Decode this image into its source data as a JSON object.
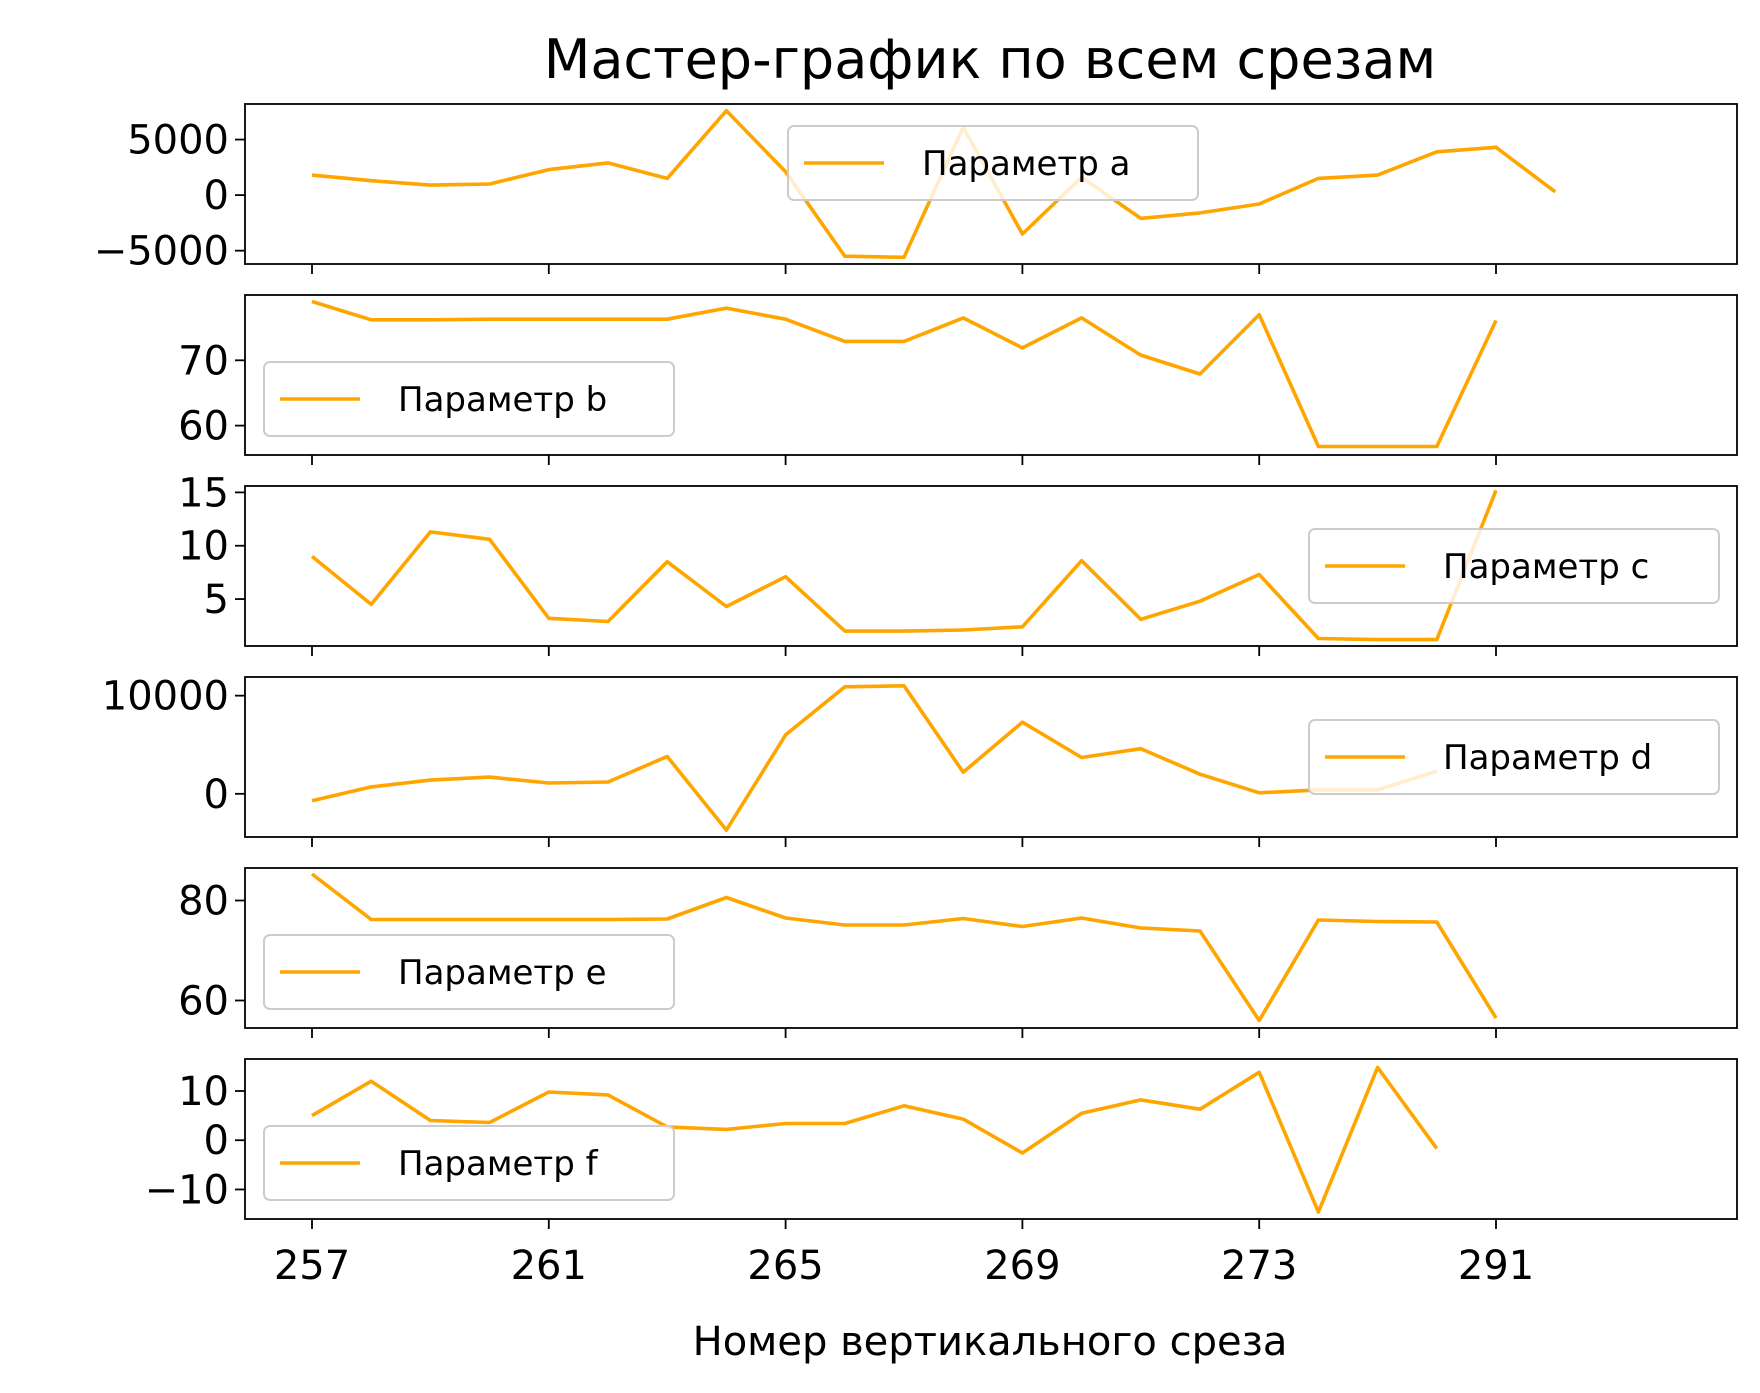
{
  "chart_data": {
    "type": "line",
    "title": "Мастер-график по всем срезам",
    "xlabel": "Номер вертикального среза",
    "x_tick_labels": [
      "257",
      "261",
      "265",
      "269",
      "273",
      "291"
    ],
    "color": "#ffa500",
    "panels": [
      {
        "name": "Параметр a",
        "ylim": [
          -6200,
          8200
        ],
        "yticks": [
          -5000,
          0,
          5000
        ],
        "ytick_labels": [
          "−5000",
          "0",
          "5000"
        ],
        "legend_loc": "upper-center",
        "values": [
          1800,
          1300,
          900,
          1000,
          2300,
          2900,
          1500,
          7600,
          2100,
          -5500,
          -5600,
          6100,
          -3500,
          1600,
          -2100,
          -1600,
          -800,
          1500,
          1800,
          3900,
          4300,
          300
        ]
      },
      {
        "name": "Параметр b",
        "ylim": [
          55.5,
          80
        ],
        "yticks": [
          60,
          70
        ],
        "ytick_labels": [
          "60",
          "70"
        ],
        "legend_loc": "lower-left",
        "values": [
          79,
          76.2,
          76.2,
          76.3,
          76.3,
          76.3,
          76.3,
          78,
          76.3,
          72.9,
          72.9,
          76.5,
          71.9,
          76.5,
          70.8,
          67.9,
          77,
          56.8,
          56.8,
          56.8,
          76.1
        ]
      },
      {
        "name": "Параметр c",
        "ylim": [
          0.6,
          15.6
        ],
        "yticks": [
          5,
          10,
          15
        ],
        "ytick_labels": [
          "5",
          "10",
          "15"
        ],
        "legend_loc": "center-right",
        "values": [
          9,
          4.5,
          11.3,
          10.6,
          3.2,
          2.9,
          8.5,
          4.3,
          7.1,
          2,
          2,
          2.1,
          2.4,
          8.6,
          3.1,
          4.8,
          7.3,
          1.3,
          1.2,
          1.2,
          15.2
        ]
      },
      {
        "name": "Параметр d",
        "ylim": [
          -4400,
          11900
        ],
        "yticks": [
          0,
          10000
        ],
        "ytick_labels": [
          "0",
          "10000"
        ],
        "legend_loc": "center-right",
        "values": [
          -700,
          700,
          1400,
          1700,
          1100,
          1200,
          3800,
          -3700,
          6000,
          10900,
          11000,
          2200,
          7300,
          3700,
          4600,
          2000,
          100,
          400,
          400,
          2300
        ]
      },
      {
        "name": "Параметр e",
        "ylim": [
          54.5,
          86.5
        ],
        "yticks": [
          60,
          80
        ],
        "ytick_labels": [
          "60",
          "80"
        ],
        "legend_loc": "lower-left",
        "values": [
          85.3,
          76.2,
          76.2,
          76.2,
          76.2,
          76.2,
          76.3,
          80.6,
          76.5,
          75.1,
          75.1,
          76.4,
          74.8,
          76.5,
          74.5,
          73.9,
          56,
          76.1,
          75.8,
          75.7,
          56.5
        ]
      },
      {
        "name": "Параметр f",
        "ylim": [
          -16,
          16.5
        ],
        "yticks": [
          -10,
          0,
          10
        ],
        "ytick_labels": [
          "−10",
          "0",
          "10"
        ],
        "legend_loc": "lower-left",
        "values": [
          5,
          12,
          4,
          3.6,
          9.8,
          9.2,
          2.7,
          2.2,
          3.4,
          3.4,
          7,
          4.3,
          -2.6,
          5.5,
          8.2,
          6.3,
          13.8,
          -14.6,
          14.8,
          -1.7
        ]
      }
    ]
  }
}
